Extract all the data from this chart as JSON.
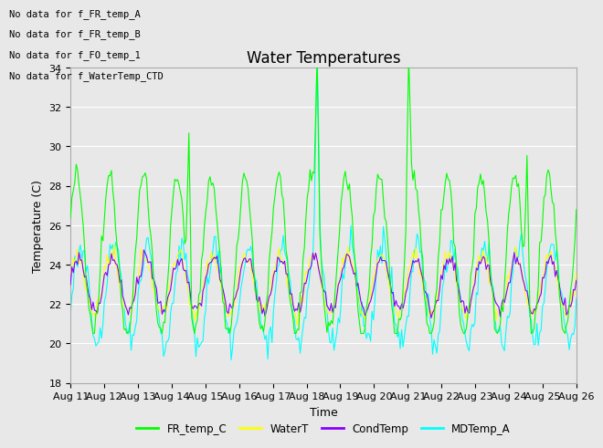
{
  "title": "Water Temperatures",
  "xlabel": "Time",
  "ylabel": "Temperature (C)",
  "ylim": [
    18,
    34
  ],
  "yticks": [
    18,
    20,
    22,
    24,
    26,
    28,
    30,
    32,
    34
  ],
  "xstart": 11,
  "xend": 26,
  "xtick_labels": [
    "Aug 11",
    "Aug 12",
    "Aug 13",
    "Aug 14",
    "Aug 15",
    "Aug 16",
    "Aug 17",
    "Aug 18",
    "Aug 19",
    "Aug 20",
    "Aug 21",
    "Aug 22",
    "Aug 23",
    "Aug 24",
    "Aug 25",
    "Aug 26"
  ],
  "no_data_text": [
    "No data for f_FR_temp_A",
    "No data for f_FR_temp_B",
    "No data for f_FO_temp_1",
    "No data for f_WaterTemp_CTD"
  ],
  "legend_entries": [
    "FR_temp_C",
    "WaterT",
    "CondTemp",
    "MDTemp_A"
  ],
  "legend_colors": [
    "#00FF00",
    "#FFFF00",
    "#8800FF",
    "#00FFFF"
  ],
  "line_colors": [
    "#00FF00",
    "#FFFF00",
    "#8800FF",
    "#00FFFF"
  ],
  "background_color": "#E8E8E8",
  "plot_bg_color": "#E8E8E8",
  "grid_color": "#FFFFFF",
  "title_fontsize": 12,
  "axis_fontsize": 9,
  "tick_fontsize": 8
}
